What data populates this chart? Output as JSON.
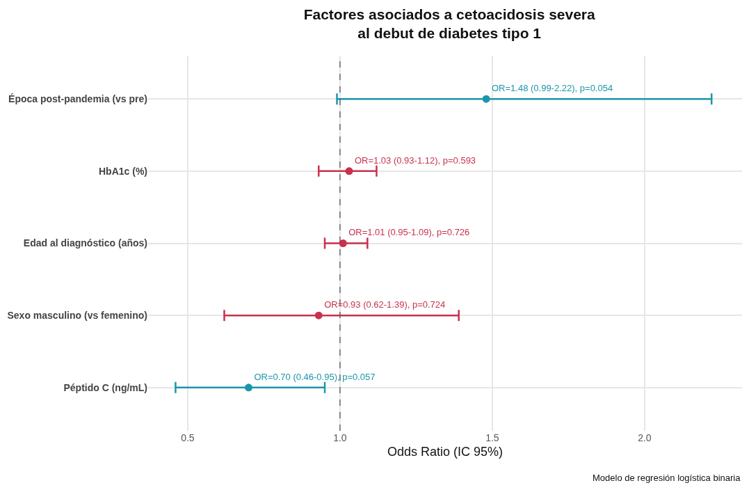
{
  "chart_data": {
    "type": "scatter",
    "orientation": "horizontal",
    "title": "Factores asociados a cetoacidosis severa\nal debut de diabetes tipo 1",
    "xlabel": "Odds Ratio (IC 95%)",
    "categories": [
      "Época post-pandemia (vs pre)",
      "HbA1c (%)",
      "Edad al diagnóstico (años)",
      "Sexo masculino (vs femenino)",
      "Péptido C (ng/mL)"
    ],
    "values": [
      1.48,
      1.03,
      1.01,
      0.93,
      0.7
    ],
    "errors": [
      [
        0.99,
        2.22
      ],
      [
        0.93,
        1.12
      ],
      [
        0.95,
        1.09
      ],
      [
        0.62,
        1.39
      ],
      [
        0.46,
        0.95
      ]
    ],
    "colors": [
      "#1a96aa",
      "#c9314d",
      "#c9314d",
      "#c9314d",
      "#1a96aa"
    ],
    "value_labels": [
      "OR=1.48 (0.99-2.22), p=0.054",
      "OR=1.03 (0.93-1.12), p=0.593",
      "OR=1.01 (0.95-1.09), p=0.726",
      "OR=0.93 (0.62-1.39), p=0.724",
      "OR=0.70 (0.46-0.95), p=0.057"
    ],
    "xlim": [
      0.37,
      2.32
    ],
    "xticks": [
      0.5,
      {
        "value": 1,
        "label": "1.0"
      },
      1.5,
      {
        "value": 2,
        "label": "2.0"
      }
    ],
    "ref_lines": [
      {
        "axis": "x",
        "value": 1,
        "color": "#555555",
        "line_style": "dashed"
      }
    ],
    "annotations": [
      "Modelo de regresión logística binaria"
    ],
    "grid": true,
    "marker": "circle"
  }
}
